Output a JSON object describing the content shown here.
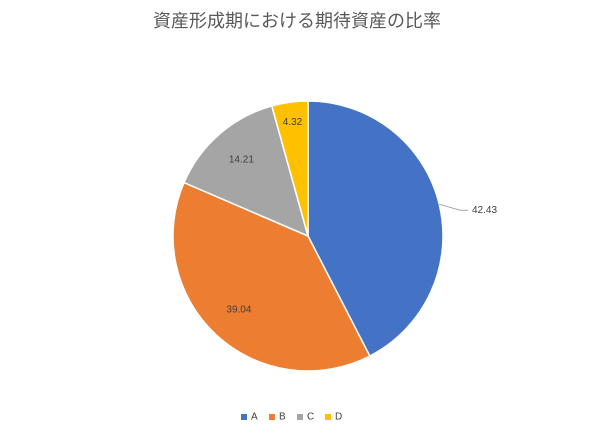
{
  "chart_data": {
    "type": "pie",
    "title": "資産形成期における期待資産の比率",
    "categories": [
      "A",
      "B",
      "C",
      "D"
    ],
    "values": [
      42.43,
      39.04,
      14.21,
      4.32
    ],
    "colors": [
      "#4472c4",
      "#ed7d31",
      "#a5a5a5",
      "#ffc000"
    ],
    "legend": "bottom"
  }
}
